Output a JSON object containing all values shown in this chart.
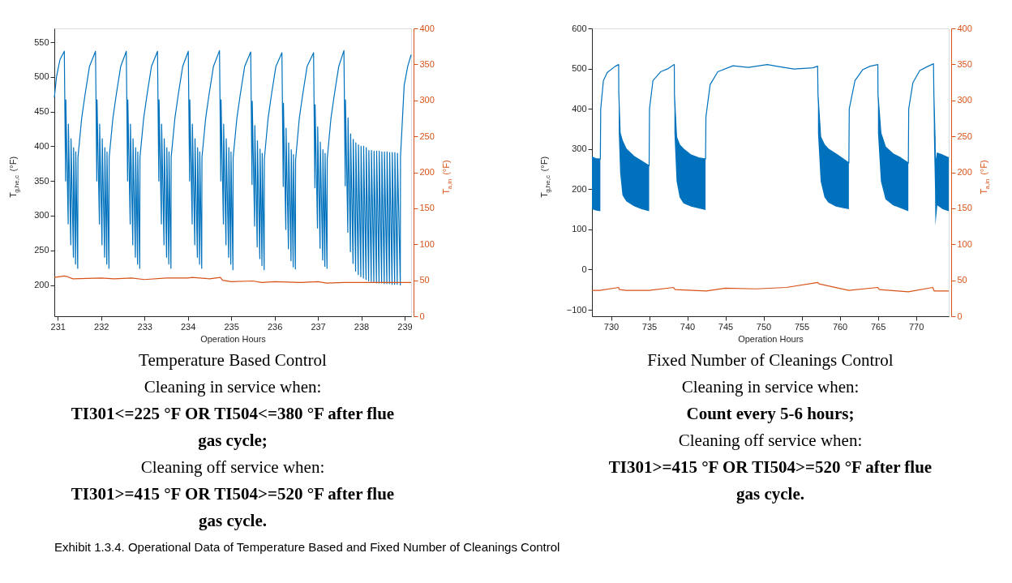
{
  "chart_data": [
    {
      "type": "line",
      "xlabel": "Operation Hours",
      "ylabel": "T$_{g,he,c}$ (°F)",
      "y2label": "T$_{a,in}$ (°F)",
      "xlim": [
        230.92,
        239.15
      ],
      "xticks": [
        231,
        232,
        233,
        234,
        235,
        236,
        237,
        238,
        239
      ],
      "ylim": [
        155,
        570
      ],
      "yticks": [
        200,
        250,
        300,
        350,
        400,
        450,
        500,
        550
      ],
      "y2lim": [
        0,
        400
      ],
      "y2ticks": [
        0,
        50,
        100,
        150,
        200,
        250,
        300,
        350,
        400
      ],
      "grid": false,
      "series": [
        {
          "color": "#0072bd",
          "x": [
            230.92,
            230.97,
            231.05,
            231.15,
            231.18,
            231.185,
            231.24,
            231.245,
            231.3,
            231.305,
            231.36,
            231.365,
            231.41,
            231.415,
            231.46,
            231.465,
            231.55,
            231.63,
            231.73,
            231.87,
            231.9,
            231.905,
            231.96,
            231.965,
            232.02,
            232.025,
            232.08,
            232.085,
            232.13,
            232.135,
            232.18,
            232.185,
            232.27,
            232.35,
            232.45,
            232.58,
            232.61,
            232.615,
            232.67,
            232.675,
            232.73,
            232.735,
            232.79,
            232.795,
            232.84,
            232.845,
            232.89,
            232.895,
            232.98,
            233.06,
            233.16,
            233.3,
            233.33,
            233.335,
            233.39,
            233.395,
            233.45,
            233.455,
            233.51,
            233.515,
            233.56,
            233.565,
            233.61,
            233.615,
            233.7,
            233.78,
            233.88,
            234.01,
            234.04,
            234.045,
            234.1,
            234.105,
            234.16,
            234.165,
            234.22,
            234.225,
            234.27,
            234.275,
            234.32,
            234.325,
            234.41,
            234.49,
            234.59,
            234.73,
            234.76,
            234.765,
            234.82,
            234.825,
            234.88,
            234.885,
            234.94,
            234.945,
            234.99,
            234.995,
            235.04,
            235.045,
            235.13,
            235.21,
            235.31,
            235.45,
            235.48,
            235.485,
            235.54,
            235.545,
            235.6,
            235.605,
            235.66,
            235.665,
            235.71,
            235.715,
            235.76,
            235.765,
            235.85,
            235.93,
            236.03,
            236.17,
            236.2,
            236.205,
            236.26,
            236.265,
            236.32,
            236.325,
            236.38,
            236.385,
            236.43,
            236.435,
            236.48,
            236.485,
            236.57,
            236.65,
            236.75,
            236.9,
            236.93,
            236.935,
            236.99,
            236.995,
            237.05,
            237.055,
            237.11,
            237.115,
            237.16,
            237.165,
            237.21,
            237.215,
            237.3,
            237.38,
            237.48,
            237.6,
            237.63,
            237.635,
            237.69,
            237.695,
            237.75,
            237.755,
            237.81,
            237.815,
            237.87,
            237.875,
            237.93,
            237.935,
            237.99,
            237.995,
            238.05,
            238.055,
            238.11,
            238.115,
            238.17,
            238.175,
            238.23,
            238.235,
            238.29,
            238.295,
            238.35,
            238.355,
            238.41,
            238.415,
            238.47,
            238.475,
            238.53,
            238.535,
            238.59,
            238.595,
            238.65,
            238.655,
            238.71,
            238.715,
            238.77,
            238.775,
            238.83,
            238.835,
            238.9,
            238.905,
            238.99,
            239.07,
            239.15
          ],
          "values": [
            470,
            500,
            525,
            537,
            350,
            467,
            288,
            432,
            258,
            411,
            240,
            398,
            230,
            392,
            224,
            384,
            440,
            475,
            515,
            537,
            350,
            467,
            288,
            432,
            258,
            411,
            240,
            398,
            230,
            392,
            224,
            384,
            440,
            475,
            515,
            537,
            350,
            467,
            288,
            432,
            258,
            411,
            240,
            398,
            230,
            392,
            224,
            384,
            440,
            475,
            515,
            537,
            350,
            467,
            288,
            432,
            258,
            411,
            240,
            398,
            230,
            392,
            224,
            384,
            440,
            475,
            515,
            537,
            350,
            467,
            288,
            432,
            258,
            411,
            240,
            398,
            230,
            392,
            224,
            384,
            440,
            475,
            515,
            538,
            350,
            467,
            288,
            432,
            258,
            411,
            240,
            398,
            230,
            392,
            222,
            384,
            440,
            475,
            515,
            536,
            345,
            465,
            285,
            430,
            255,
            408,
            238,
            396,
            228,
            390,
            222,
            382,
            440,
            475,
            515,
            535,
            342,
            462,
            280,
            426,
            252,
            405,
            235,
            395,
            226,
            388,
            223,
            380,
            440,
            475,
            515,
            535,
            340,
            460,
            282,
            428,
            253,
            406,
            236,
            395,
            227,
            390,
            224,
            382,
            440,
            475,
            515,
            538,
            343,
            467,
            276,
            441,
            248,
            418,
            231,
            410,
            220,
            405,
            215,
            402,
            212,
            400,
            210,
            400,
            208,
            398,
            206,
            394,
            205,
            394,
            204,
            393,
            203,
            393,
            203,
            393,
            203,
            392,
            202,
            392,
            202,
            392,
            202,
            391,
            201,
            391,
            201,
            391,
            201,
            390,
            200,
            385,
            488,
            515,
            532
          ]
        },
        {
          "color": "#d95319",
          "axis": "y2",
          "x": [
            230.92,
            231.15,
            231.22,
            231.35,
            232.0,
            232.3,
            232.7,
            233.0,
            233.5,
            234.0,
            234.1,
            234.5,
            234.75,
            234.8,
            235.0,
            235.5,
            235.7,
            236.0,
            236.6,
            237.0,
            237.2,
            237.6,
            238.5,
            239.15
          ],
          "values": [
            54,
            56,
            55,
            52,
            53,
            52,
            53,
            51,
            53,
            53,
            54,
            52,
            54,
            50,
            48,
            49,
            47,
            48,
            47,
            48,
            46,
            47,
            47,
            47
          ]
        }
      ],
      "annotations": [
        "Temperature Based Control",
        "Cleaning in service when:",
        "TI301<=225 °F OR TI504<=380 °F after flue gas cycle;",
        "Cleaning off service when:",
        "TI301>=415 °F OR TI504>=520 °F after flue gas cycle."
      ]
    },
    {
      "type": "line",
      "xlabel": "Operation Hours",
      "ylabel": "T$_{g,he,c}$ (°F)",
      "y2label": "T$_{a,in}$ (°F)",
      "xlim": [
        727.5,
        774.3
      ],
      "xticks": [
        730,
        735,
        740,
        745,
        750,
        755,
        760,
        765,
        770
      ],
      "ylim": [
        -116,
        600
      ],
      "yticks": [
        -100,
        0,
        100,
        200,
        300,
        400,
        500,
        600
      ],
      "y2lim": [
        0,
        400
      ],
      "y2ticks": [
        0,
        50,
        100,
        150,
        200,
        250,
        300,
        350,
        400
      ],
      "grid": false,
      "series": [
        {
          "color": "#0072bd",
          "x": [
            727.5,
            728.0,
            728.6,
            728.65,
            729.0,
            729.5,
            730.5,
            731.0,
            731.02,
            731.2,
            731.5,
            732.0,
            733.0,
            734.0,
            735.0,
            735.05,
            735.5,
            736.5,
            737.5,
            738.3,
            738.32,
            738.6,
            739.0,
            739.5,
            740.5,
            741.5,
            742.4,
            742.45,
            743.0,
            744.0,
            746.0,
            748.0,
            750.5,
            752.0,
            754.0,
            756.5,
            757.1,
            757.15,
            757.5,
            758.0,
            758.5,
            759.5,
            760.5,
            761.2,
            761.25,
            762.0,
            763.0,
            764.0,
            765.0,
            765.02,
            765.4,
            766.0,
            767.0,
            768.0,
            769.0,
            769.05,
            769.6,
            770.5,
            771.5,
            772.3,
            772.35,
            772.5,
            772.55,
            772.8,
            773.5,
            774.3
          ],
          "values": [
            280,
            276,
            275,
            400,
            470,
            490,
            505,
            510,
            440,
            340,
            320,
            300,
            282,
            270,
            258,
            400,
            470,
            492,
            500,
            510,
            435,
            330,
            310,
            300,
            285,
            278,
            275,
            380,
            460,
            492,
            507,
            503,
            510,
            505,
            499,
            502,
            506,
            435,
            330,
            310,
            300,
            288,
            275,
            265,
            400,
            470,
            497,
            506,
            510,
            435,
            340,
            305,
            288,
            278,
            265,
            400,
            465,
            495,
            505,
            512,
            435,
            330,
            260,
            290,
            285,
            278
          ],
          "lower": [
            150,
            147,
            145,
            null,
            null,
            null,
            null,
            null,
            340,
            240,
            185,
            170,
            158,
            150,
            145,
            null,
            null,
            null,
            null,
            null,
            340,
            220,
            180,
            165,
            157,
            152,
            148,
            null,
            null,
            null,
            null,
            null,
            null,
            null,
            null,
            null,
            null,
            340,
            220,
            180,
            167,
            157,
            153,
            150,
            null,
            null,
            null,
            null,
            null,
            340,
            220,
            175,
            160,
            153,
            145,
            null,
            null,
            null,
            null,
            null,
            340,
            200,
            110,
            160,
            150,
            145
          ],
          "upper": [
            280,
            276,
            275,
            null,
            null,
            null,
            null,
            null,
            440,
            340,
            320,
            300,
            282,
            270,
            258,
            null,
            null,
            null,
            null,
            null,
            435,
            330,
            310,
            300,
            285,
            278,
            275,
            null,
            null,
            null,
            null,
            null,
            null,
            null,
            null,
            null,
            null,
            435,
            330,
            310,
            300,
            288,
            275,
            265,
            null,
            null,
            null,
            null,
            null,
            435,
            340,
            305,
            288,
            278,
            265,
            null,
            null,
            null,
            null,
            null,
            435,
            330,
            260,
            290,
            285,
            278
          ]
        },
        {
          "color": "#d95319",
          "axis": "y2",
          "x": [
            727.5,
            728.5,
            731.0,
            731.1,
            732.0,
            735.0,
            738.2,
            738.4,
            742.5,
            745.0,
            749.0,
            753.0,
            757.1,
            757.3,
            759.0,
            761.2,
            765.0,
            765.2,
            769.0,
            772.2,
            772.4,
            774.3
          ],
          "values": [
            36,
            36,
            40,
            37,
            36,
            36,
            40,
            37,
            35,
            39,
            38,
            40,
            47,
            45,
            41,
            36,
            40,
            37,
            34,
            40,
            35,
            35
          ]
        }
      ],
      "annotations": [
        "Fixed Number of Cleanings Control",
        "Cleaning in service when:",
        "Count every 5-6 hours;",
        "Cleaning off service when:",
        "TI301>=415 °F OR TI504>=520 °F after flue gas cycle.",
        "Exhibit 1.3.4. Operational Data of Temperature Based and Fixed Number of Cleanings Control"
      ]
    }
  ]
}
